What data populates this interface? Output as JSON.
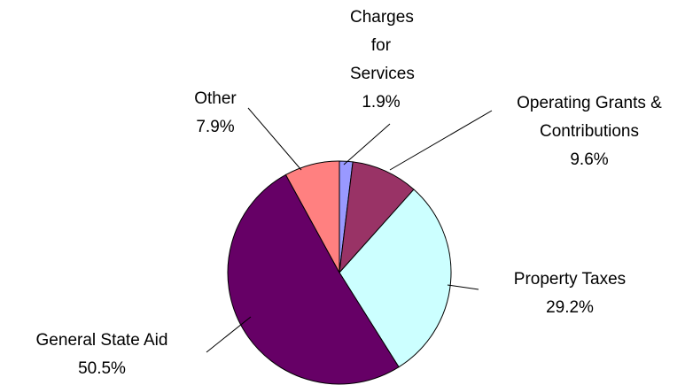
{
  "chart_data": {
    "type": "pie",
    "categories": [
      "Charges for Services",
      "Operating Grants & Contributions",
      "Property Taxes",
      "General State Aid",
      "Other"
    ],
    "values": [
      1.9,
      9.6,
      29.2,
      50.5,
      7.9
    ],
    "value_labels": [
      "1.9%",
      "9.6%",
      "29.2%",
      "50.5%",
      "7.9%"
    ],
    "colors": [
      "#9999ff",
      "#993366",
      "#ccffff",
      "#660066",
      "#ff8080"
    ]
  }
}
